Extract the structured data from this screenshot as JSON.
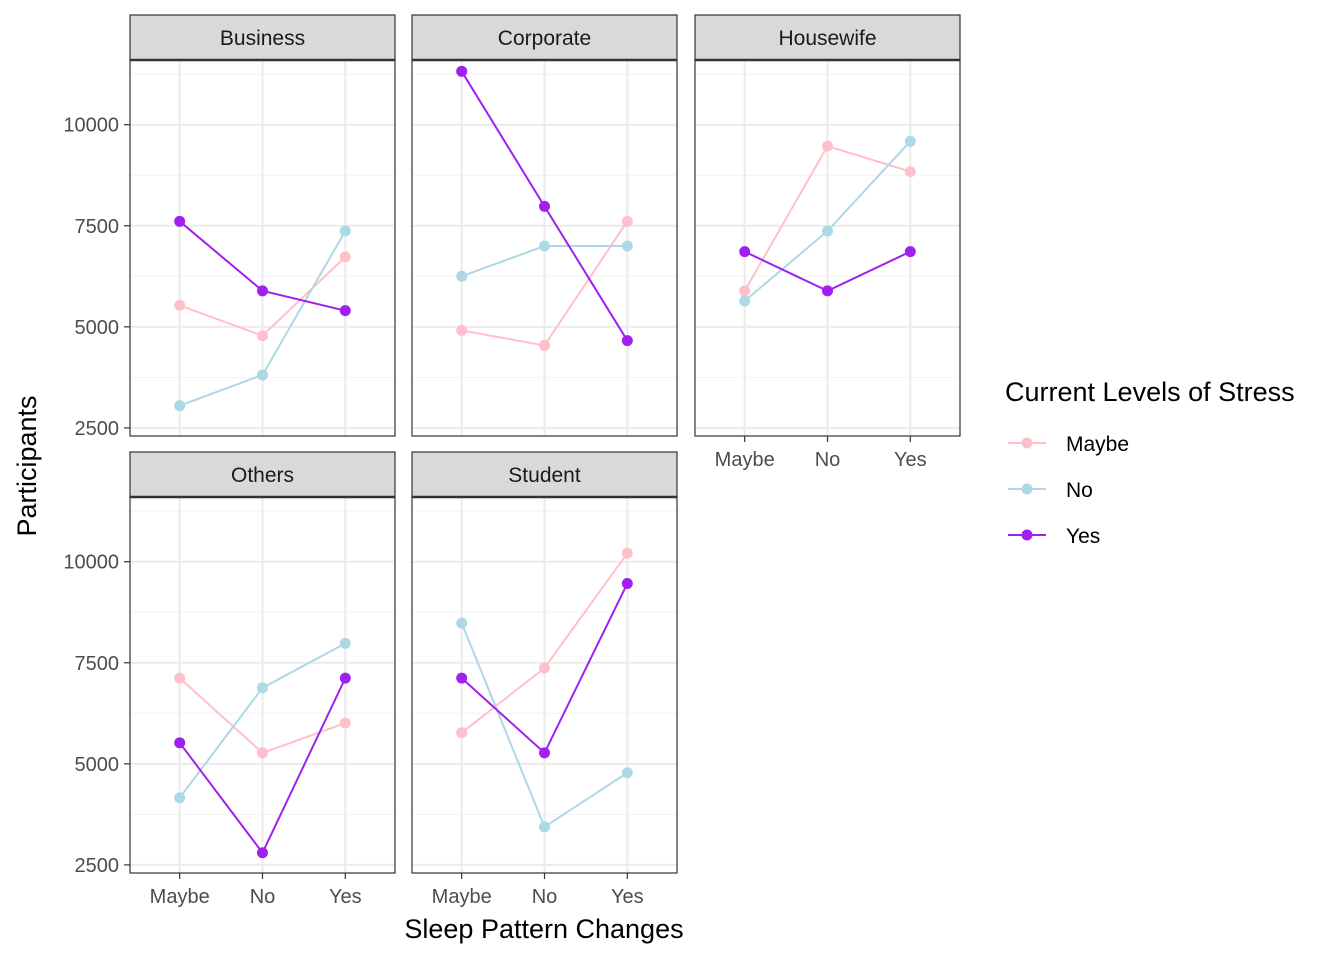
{
  "chart_data": {
    "type": "line",
    "facet_by": "occupation",
    "x_label": "Sleep Pattern Changes",
    "y_label": "Participants",
    "x_categories": [
      "Maybe",
      "No",
      "Yes"
    ],
    "y_ticks": [
      2500,
      5000,
      7500,
      10000
    ],
    "y_tick_labels": [
      "2500",
      "5000",
      "7500",
      "10000"
    ],
    "ylim": [
      2300,
      11600
    ],
    "grid": true,
    "legend": {
      "title": "Current Levels of Stress",
      "placement": "right",
      "entries": [
        {
          "label": "Maybe",
          "color": "#FFC0CB"
        },
        {
          "label": "No",
          "color": "#ADD8E6"
        },
        {
          "label": "Yes",
          "color": "#A020F0"
        }
      ]
    },
    "panels": [
      {
        "title": "Business",
        "series": [
          {
            "name": "Maybe",
            "values": [
              5530,
              4780,
              6730
            ]
          },
          {
            "name": "No",
            "values": [
              3050,
              3810,
              7370
            ]
          },
          {
            "name": "Yes",
            "values": [
              7610,
              5890,
              5400
            ]
          }
        ]
      },
      {
        "title": "Corporate",
        "series": [
          {
            "name": "Maybe",
            "values": [
              4910,
              4540,
              7610
            ]
          },
          {
            "name": "No",
            "values": [
              6250,
              7000,
              7000
            ]
          },
          {
            "name": "Yes",
            "values": [
              11320,
              7980,
              4660
            ]
          }
        ]
      },
      {
        "title": "Housewife",
        "series": [
          {
            "name": "Maybe",
            "values": [
              5890,
              9470,
              8840
            ]
          },
          {
            "name": "No",
            "values": [
              5640,
              7370,
              9590
            ]
          },
          {
            "name": "Yes",
            "values": [
              6860,
              5890,
              6860
            ]
          }
        ]
      },
      {
        "title": "Others",
        "series": [
          {
            "name": "Maybe",
            "values": [
              7120,
              5270,
              6010
            ]
          },
          {
            "name": "No",
            "values": [
              4160,
              6880,
              7980
            ]
          },
          {
            "name": "Yes",
            "values": [
              5520,
              2800,
              7120
            ]
          }
        ]
      },
      {
        "title": "Student",
        "series": [
          {
            "name": "Maybe",
            "values": [
              5770,
              7370,
              10210
            ]
          },
          {
            "name": "No",
            "values": [
              8480,
              3440,
              4780
            ]
          },
          {
            "name": "Yes",
            "values": [
              7120,
              5270,
              9460
            ]
          }
        ]
      }
    ]
  }
}
